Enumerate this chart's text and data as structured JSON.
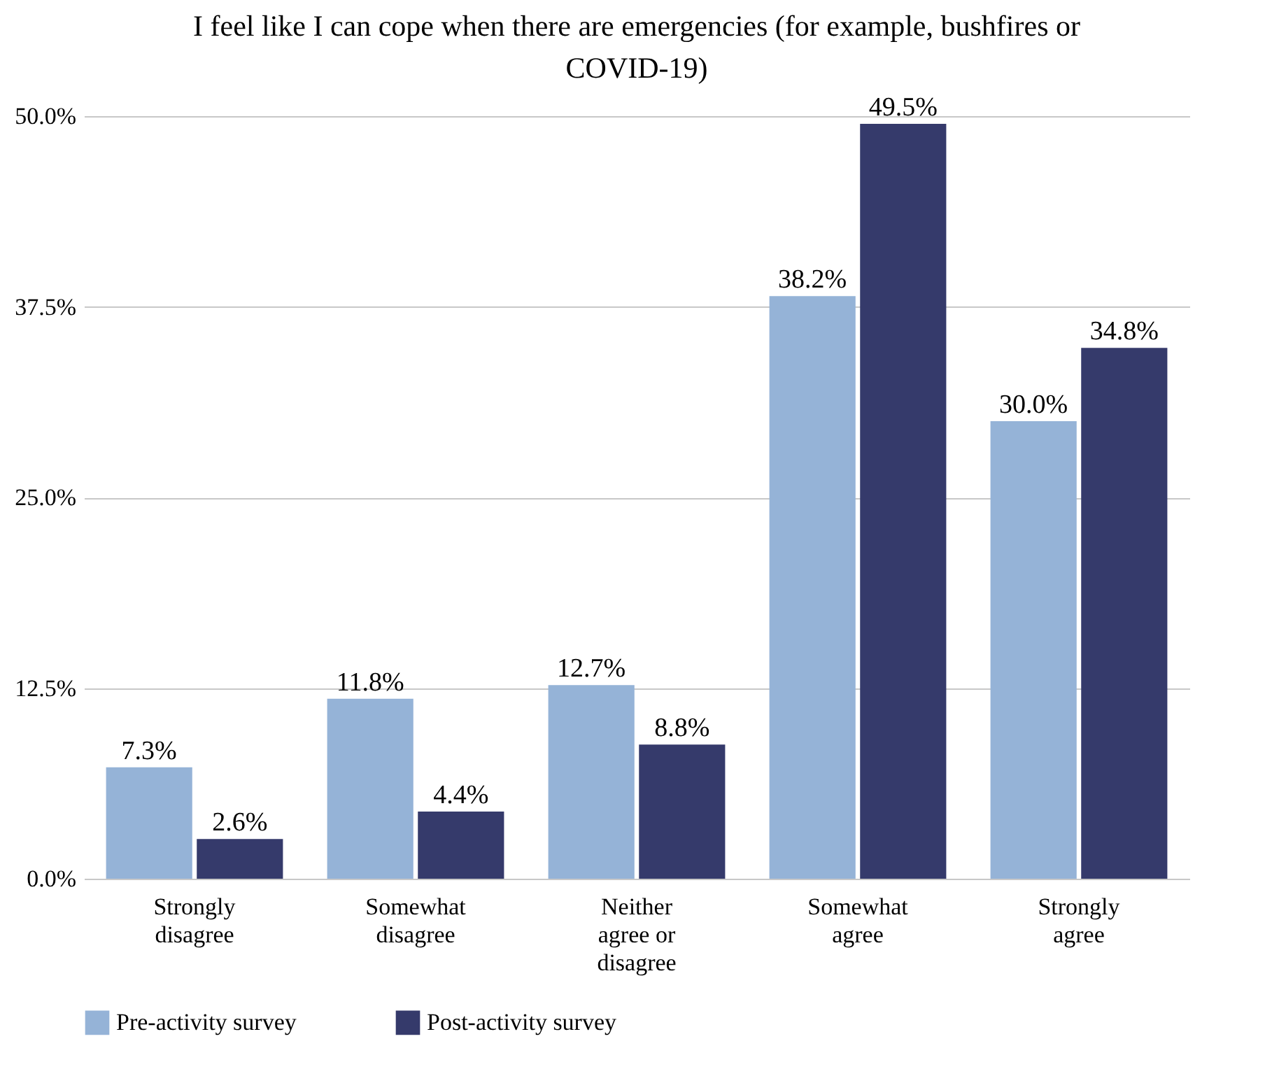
{
  "chart_data": {
    "type": "bar",
    "title": "I feel like I can cope when there are emergencies (for example, bushfires or COVID-19)",
    "categories": [
      "Strongly disagree",
      "Somewhat disagree",
      "Neither agree or disagree",
      "Somewhat agree",
      "Strongly agree"
    ],
    "series": [
      {
        "name": "Pre-activity survey",
        "color": "#95b3d7",
        "values": [
          7.3,
          11.8,
          12.7,
          38.2,
          30.0
        ],
        "value_labels": [
          "7.3%",
          "11.8%",
          "12.7%",
          "38.2%",
          "30.0%"
        ]
      },
      {
        "name": "Post-activity survey",
        "color": "#353a6b",
        "values": [
          2.6,
          4.4,
          8.8,
          49.5,
          34.8
        ],
        "value_labels": [
          "2.6%",
          "4.4%",
          "8.8%",
          "49.5%",
          "34.8%"
        ]
      }
    ],
    "ylim": [
      0,
      50
    ],
    "yticks": [
      {
        "value": 0,
        "label": "0.0%"
      },
      {
        "value": 12.5,
        "label": "12.5%"
      },
      {
        "value": 25,
        "label": "25.0%"
      },
      {
        "value": 37.5,
        "label": "37.5%"
      },
      {
        "value": 50,
        "label": "50.0%"
      }
    ],
    "grid": "y",
    "legend": "bottom"
  }
}
